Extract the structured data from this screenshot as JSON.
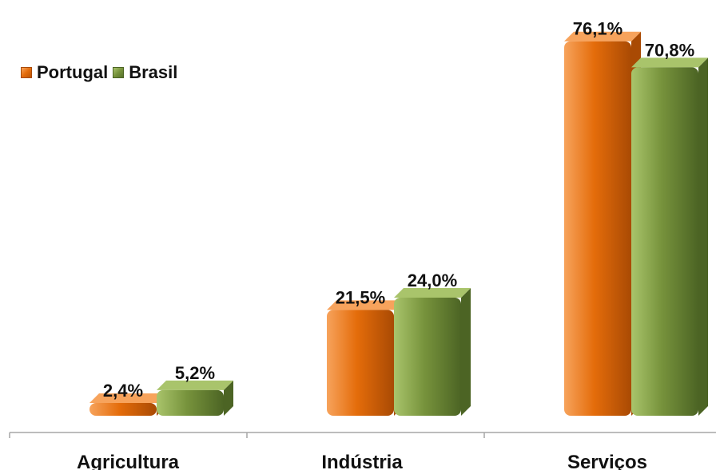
{
  "chart_data": {
    "type": "bar",
    "categories": [
      "Agricultura",
      "Indústria",
      "Serviços"
    ],
    "series": [
      {
        "name": "Portugal",
        "values": [
          2.4,
          21.5,
          76.1
        ],
        "labels": [
          "2,4%",
          "21,5%",
          "76,1%"
        ]
      },
      {
        "name": "Brasil",
        "values": [
          5.2,
          24.0,
          70.8
        ],
        "labels": [
          "5,2%",
          "24,0%",
          "70,8%"
        ]
      }
    ],
    "legend_position": "top-left",
    "grid": false,
    "ylim": [
      0,
      78
    ]
  },
  "colors": {
    "portugal": "#e46c0a",
    "portugal_dark": "#a94a04",
    "portugal_light": "#f7a35c",
    "brasil": "#77933c",
    "brasil_dark": "#4c6424",
    "brasil_light": "#a9c46b",
    "axis": "#a6a6a6"
  }
}
